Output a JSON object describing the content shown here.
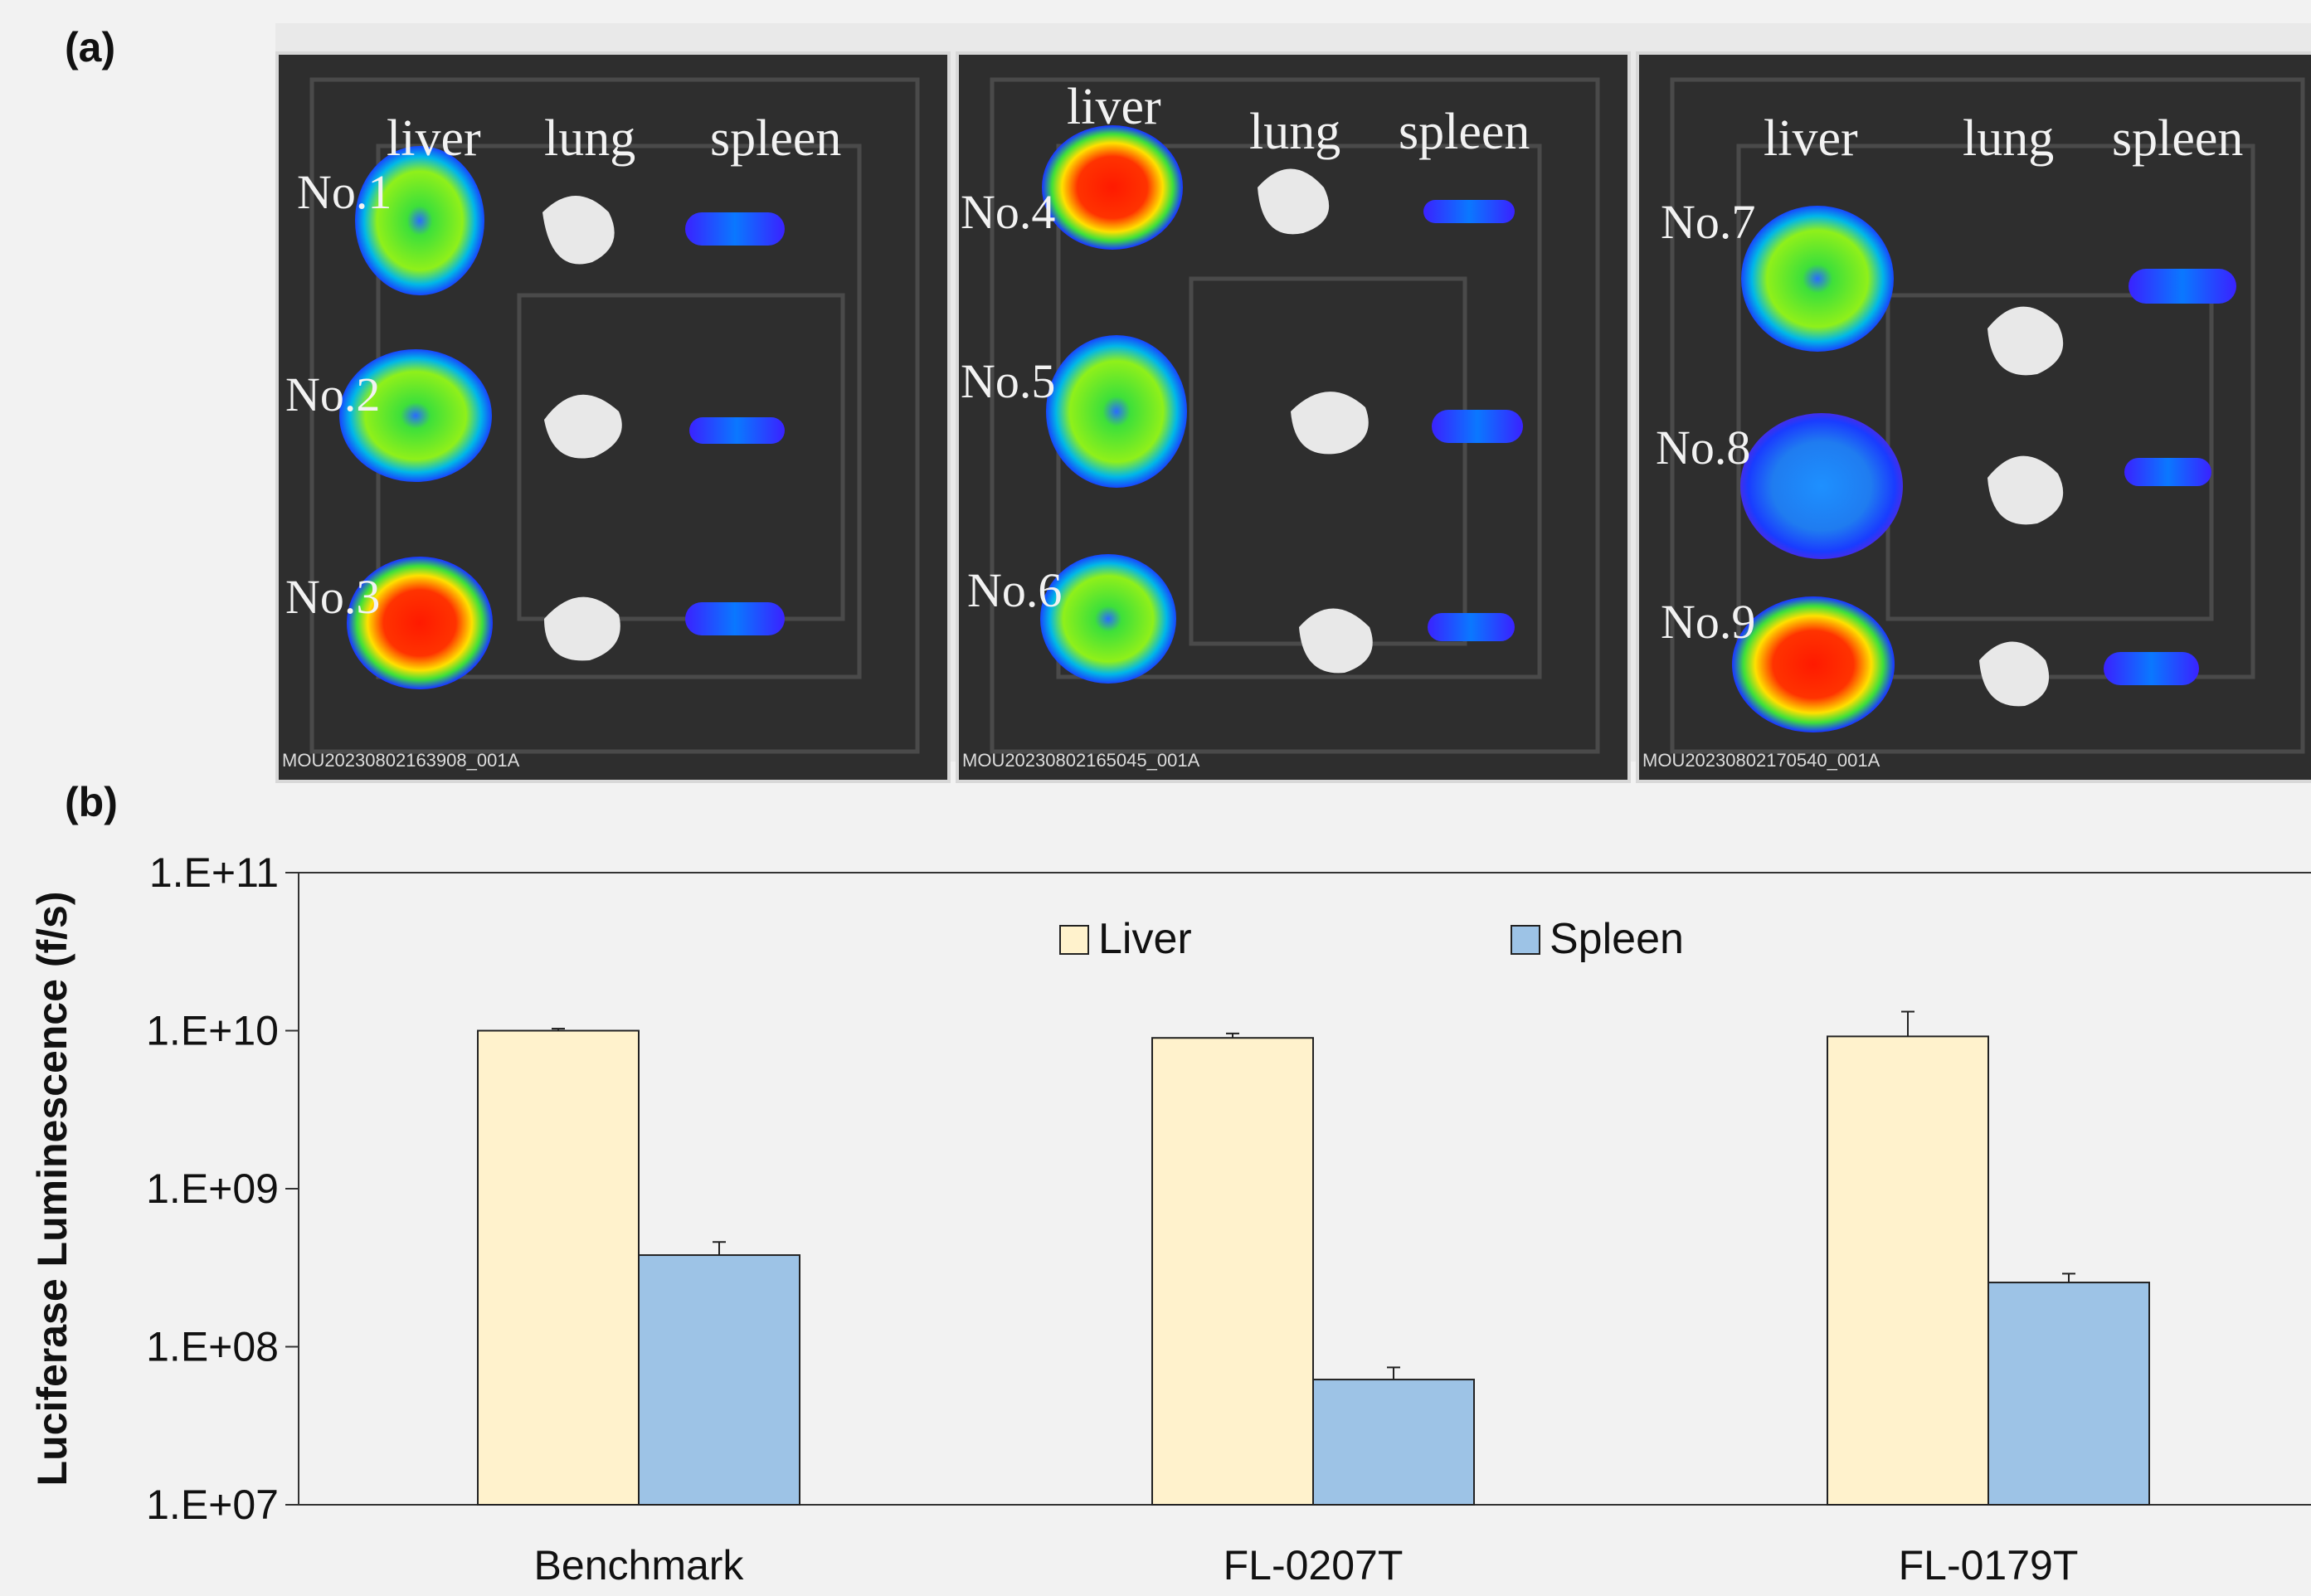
{
  "panel_labels": {
    "a": "(a)",
    "b": "(b)"
  },
  "imaging": {
    "organ_labels": [
      "liver",
      "lung",
      "spleen"
    ],
    "panels": [
      {
        "mice": [
          "No.1",
          "No.2",
          "No.3"
        ],
        "image_id": "MOU20230802163908_001A"
      },
      {
        "mice": [
          "No.4",
          "No.5",
          "No.6"
        ],
        "image_id": "MOU20230802165045_001A"
      },
      {
        "mice": [
          "No.7",
          "No.8",
          "No.9"
        ],
        "image_id": "MOU20230802170540_001A"
      }
    ],
    "colors": {
      "background": "#2e2e2e",
      "hot": "#e60000",
      "warm": "#f5e400",
      "mid": "#3ee03a",
      "cool": "#00a9e0",
      "cold": "#1a3cff",
      "edge": "#6a20d8",
      "lung": "#e6e6e6"
    }
  },
  "chart_data": {
    "type": "bar",
    "categories": [
      "Benchmark",
      "FL-0207T",
      "FL-0179T"
    ],
    "series": [
      {
        "name": "Liver",
        "values": [
          10000000000.0,
          9000000000.0,
          9200000000.0
        ],
        "error": [
          300000000.0,
          600000000.0,
          4000000000.0
        ],
        "color": "#fff2cc"
      },
      {
        "name": "Spleen",
        "values": [
          380000000.0,
          62000000.0,
          255000000.0
        ],
        "error": [
          80000000.0,
          12000000.0,
          35000000.0
        ],
        "color": "#9dc3e6"
      }
    ],
    "ylabel": "Luciferase Luminescence (f/s)",
    "xlabel": "",
    "yscale": "log",
    "ylim": [
      10000000.0,
      100000000000.0
    ],
    "yticks": [
      "1.E+07",
      "1.E+08",
      "1.E+09",
      "1.E+10",
      "1.E+11"
    ],
    "legend_position": "top-center",
    "grid": false
  }
}
